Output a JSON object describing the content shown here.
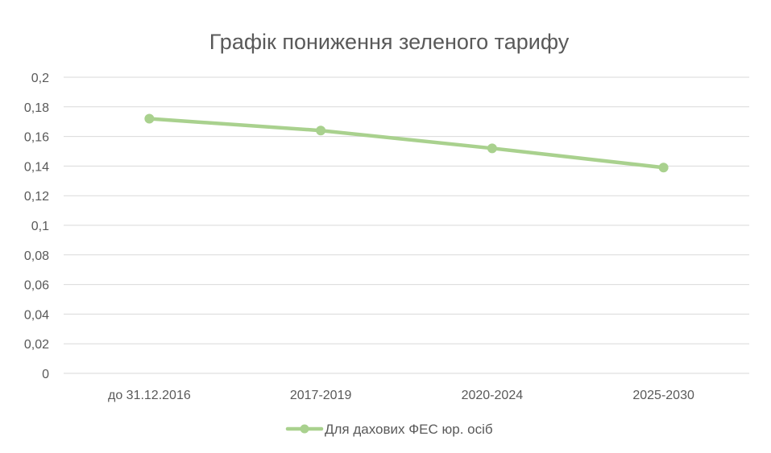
{
  "chart_data": {
    "type": "line",
    "title": "Графік пониження зеленого тарифу",
    "xlabel": "",
    "ylabel": "",
    "categories": [
      "до 31.12.2016",
      "2017-2019",
      "2020-2024",
      "2025-2030"
    ],
    "series": [
      {
        "name": "Для дахових ФЕС юр. осіб",
        "values": [
          0.172,
          0.164,
          0.152,
          0.139
        ],
        "color": "#a9d18e"
      }
    ],
    "ylim": [
      0,
      0.2
    ],
    "yticks": [
      "0",
      "0,02",
      "0,04",
      "0,06",
      "0,08",
      "0,1",
      "0,12",
      "0,14",
      "0,16",
      "0,18",
      "0,2"
    ],
    "grid": true,
    "legend_position": "bottom"
  }
}
